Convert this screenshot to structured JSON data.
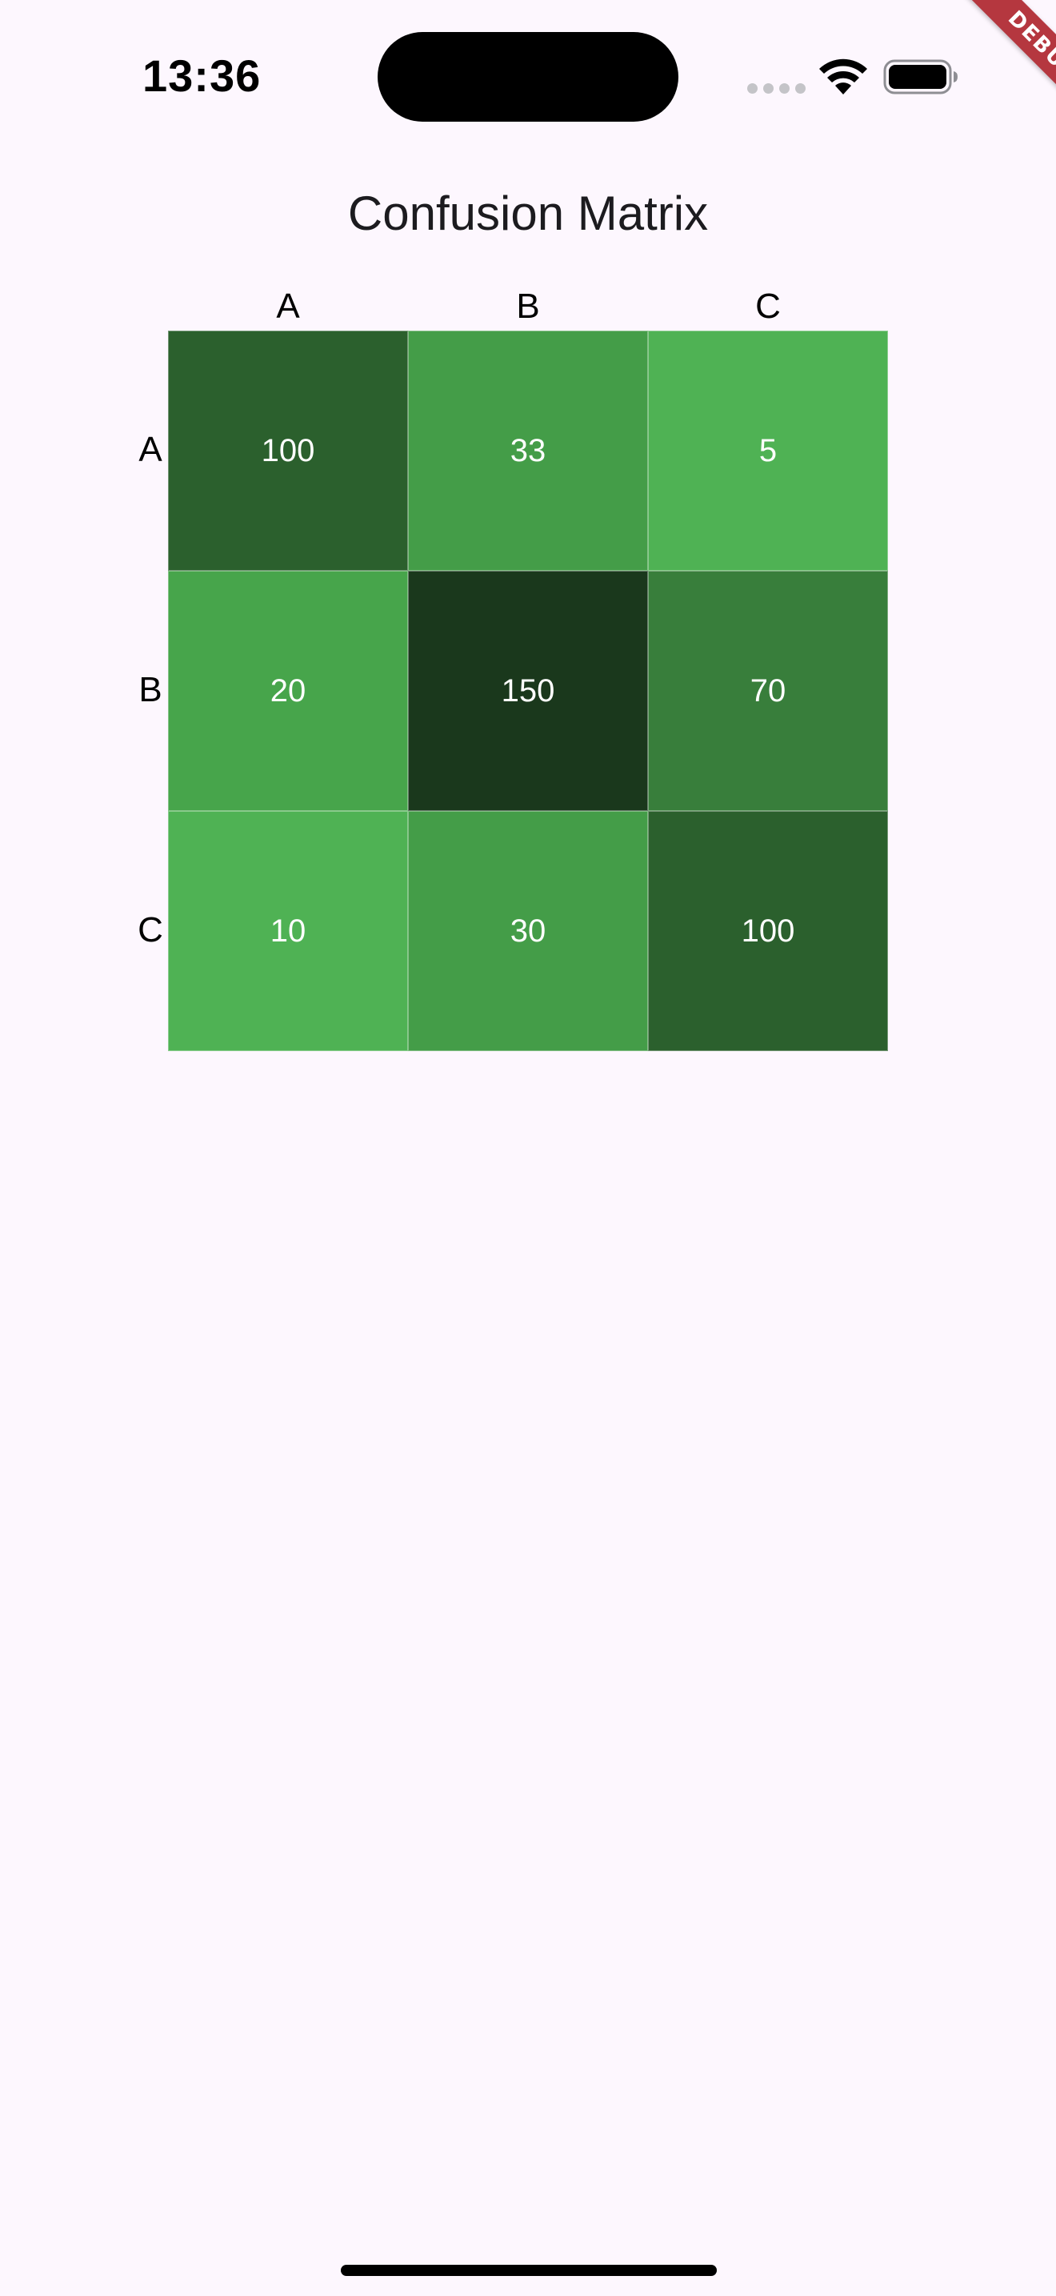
{
  "status_bar": {
    "time": "13:36"
  },
  "debug_banner": {
    "label": "DEBUG",
    "color": "#B5373F"
  },
  "title": "Confusion Matrix",
  "colors": {
    "background": "#FDF7FE",
    "cell_text": "#FFFFFF"
  },
  "chart_data": {
    "type": "heatmap",
    "title": "Confusion Matrix",
    "x_categories": [
      "A",
      "B",
      "C"
    ],
    "y_categories": [
      "A",
      "B",
      "C"
    ],
    "values": [
      [
        100,
        33,
        5
      ],
      [
        20,
        150,
        70
      ],
      [
        10,
        30,
        100
      ]
    ],
    "cell_colors": [
      [
        "#2B602D",
        "#449D48",
        "#4FB254"
      ],
      [
        "#47A54B",
        "#1A381C",
        "#387E3B"
      ],
      [
        "#4FB254",
        "#449D48",
        "#2B602D"
      ]
    ]
  }
}
